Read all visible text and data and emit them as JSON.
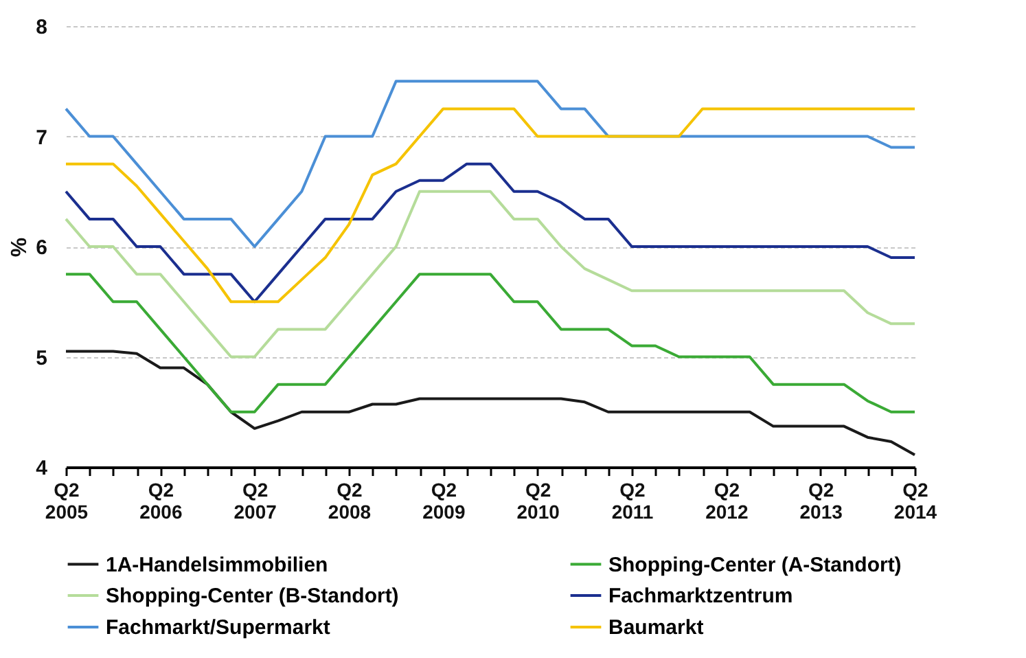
{
  "chart_data": {
    "type": "line",
    "ylabel": "%",
    "categories": [
      "Q2 2005",
      null,
      null,
      null,
      "Q2 2006",
      null,
      null,
      null,
      "Q2 2007",
      null,
      null,
      null,
      "Q2 2008",
      null,
      null,
      null,
      "Q2 2009",
      null,
      null,
      null,
      "Q2 2010",
      null,
      null,
      null,
      "Q2 2011",
      null,
      null,
      null,
      "Q2 2012",
      null,
      null,
      null,
      "Q2 2013",
      null,
      null,
      null,
      "Q2 2014"
    ],
    "ylim": [
      4,
      8
    ],
    "yticks": [
      4,
      5,
      6,
      7,
      8
    ],
    "grid": "y",
    "legend": "bottom",
    "marker": "none",
    "line_style": "solid",
    "series": [
      {
        "name": "1A-Handelsimmobilien",
        "color": "#1a1a1a",
        "values": [
          5.05,
          5.05,
          5.05,
          5.03,
          4.9,
          4.9,
          4.75,
          4.5,
          4.35,
          4.42,
          4.5,
          4.5,
          4.5,
          4.57,
          4.57,
          4.62,
          4.62,
          4.62,
          4.62,
          4.62,
          4.62,
          4.62,
          4.59,
          4.5,
          4.5,
          4.5,
          4.5,
          4.5,
          4.5,
          4.5,
          4.37,
          4.37,
          4.37,
          4.37,
          4.27,
          4.23,
          4.11
        ]
      },
      {
        "name": "Shopping-Center (A-Standort)",
        "color": "#3aaa35",
        "values": [
          5.75,
          5.75,
          5.5,
          5.5,
          5.25,
          5.0,
          4.75,
          4.5,
          4.5,
          4.75,
          4.75,
          4.75,
          5.0,
          5.25,
          5.5,
          5.75,
          5.75,
          5.75,
          5.75,
          5.5,
          5.5,
          5.25,
          5.25,
          5.25,
          5.1,
          5.1,
          5.0,
          5.0,
          5.0,
          5.0,
          4.75,
          4.75,
          4.75,
          4.75,
          4.6,
          4.5,
          4.5
        ]
      },
      {
        "name": "Shopping-Center (B-Standort)",
        "color": "#b5dc9a",
        "values": [
          6.25,
          6.0,
          6.0,
          5.75,
          5.75,
          5.5,
          5.25,
          5.0,
          5.0,
          5.25,
          5.25,
          5.25,
          5.5,
          5.75,
          6.0,
          6.5,
          6.5,
          6.5,
          6.5,
          6.25,
          6.25,
          6.0,
          5.8,
          5.7,
          5.6,
          5.6,
          5.6,
          5.6,
          5.6,
          5.6,
          5.6,
          5.6,
          5.6,
          5.6,
          5.4,
          5.3,
          5.3
        ]
      },
      {
        "name": "Fachmarktzentrum",
        "color": "#1b2f8f",
        "values": [
          6.5,
          6.25,
          6.25,
          6.0,
          6.0,
          5.75,
          5.75,
          5.75,
          5.5,
          5.75,
          6.0,
          6.25,
          6.25,
          6.25,
          6.5,
          6.6,
          6.6,
          6.75,
          6.75,
          6.5,
          6.5,
          6.4,
          6.25,
          6.25,
          6.0,
          6.0,
          6.0,
          6.0,
          6.0,
          6.0,
          6.0,
          6.0,
          6.0,
          6.0,
          6.0,
          5.9,
          5.9
        ]
      },
      {
        "name": "Fachmarkt/Supermarkt",
        "color": "#4b8fd6",
        "values": [
          7.25,
          7.0,
          7.0,
          6.75,
          6.5,
          6.25,
          6.25,
          6.25,
          6.0,
          6.25,
          6.5,
          7.0,
          7.0,
          7.0,
          7.5,
          7.5,
          7.5,
          7.5,
          7.5,
          7.5,
          7.5,
          7.25,
          7.25,
          7.0,
          7.0,
          7.0,
          7.0,
          7.0,
          7.0,
          7.0,
          7.0,
          7.0,
          7.0,
          7.0,
          7.0,
          6.9,
          6.9
        ]
      },
      {
        "name": "Baumarkt",
        "color": "#f5c300",
        "values": [
          6.75,
          6.75,
          6.75,
          6.55,
          6.3,
          6.05,
          5.8,
          5.5,
          5.5,
          5.5,
          5.7,
          5.9,
          6.2,
          6.65,
          6.75,
          7.0,
          7.25,
          7.25,
          7.25,
          7.25,
          7.0,
          7.0,
          7.0,
          7.0,
          7.0,
          7.0,
          7.0,
          7.25,
          7.25,
          7.25,
          7.25,
          7.25,
          7.25,
          7.25,
          7.25,
          7.25,
          7.25
        ]
      }
    ]
  }
}
